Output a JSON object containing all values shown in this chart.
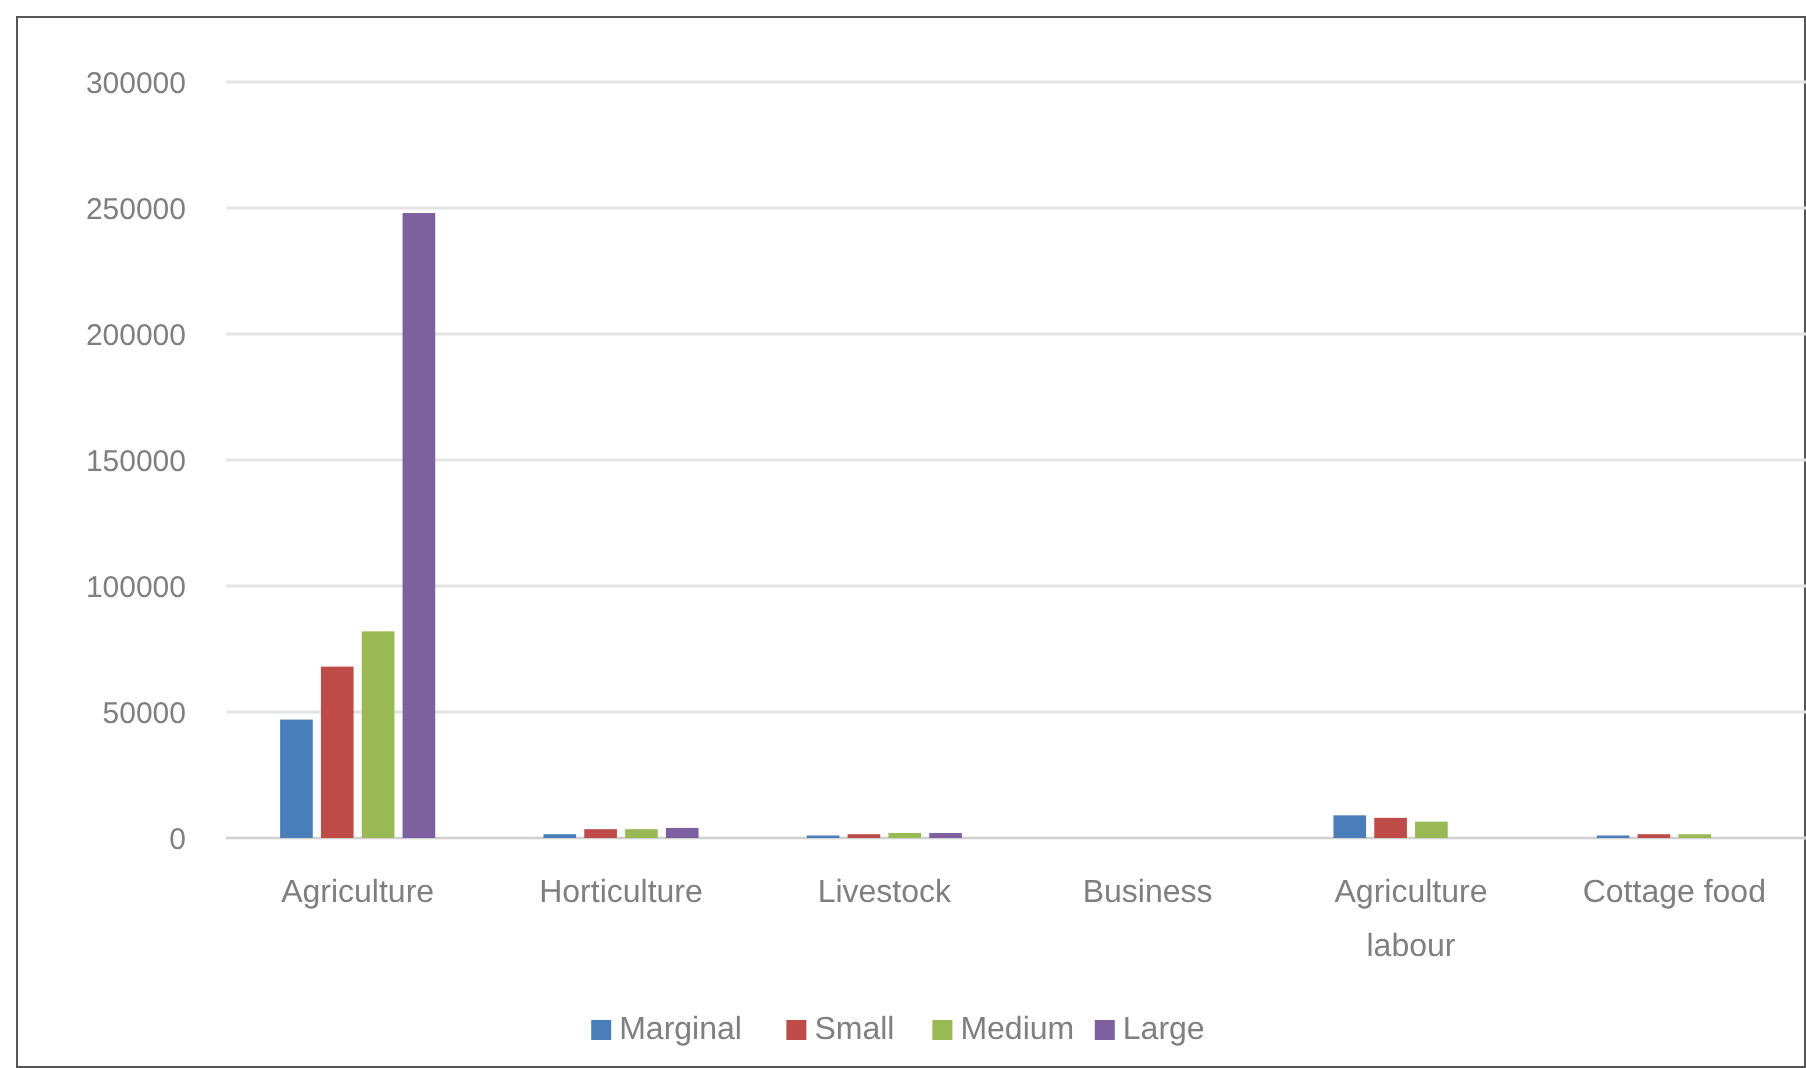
{
  "chart_data": {
    "type": "bar",
    "categories": [
      "Agriculture",
      "Horticulture",
      "Livestock",
      "Business",
      "Agriculture labour",
      "Cottage food"
    ],
    "series": [
      {
        "name": "Marginal",
        "color": "#4a7ebb",
        "values": [
          47000,
          1500,
          1000,
          0,
          9000,
          1000
        ]
      },
      {
        "name": "Small",
        "color": "#be4b48",
        "values": [
          68000,
          3500,
          1500,
          0,
          8000,
          1500
        ]
      },
      {
        "name": "Medium",
        "color": "#98b954",
        "values": [
          82000,
          3500,
          2000,
          0,
          6500,
          1500
        ]
      },
      {
        "name": "Large",
        "color": "#7d60a0",
        "values": [
          248000,
          4000,
          2000,
          0,
          0,
          0
        ]
      }
    ],
    "ylim": [
      0,
      300000
    ],
    "yticks": [
      0,
      50000,
      100000,
      150000,
      200000,
      250000,
      300000
    ],
    "grid": "y",
    "legend": "bottom"
  }
}
